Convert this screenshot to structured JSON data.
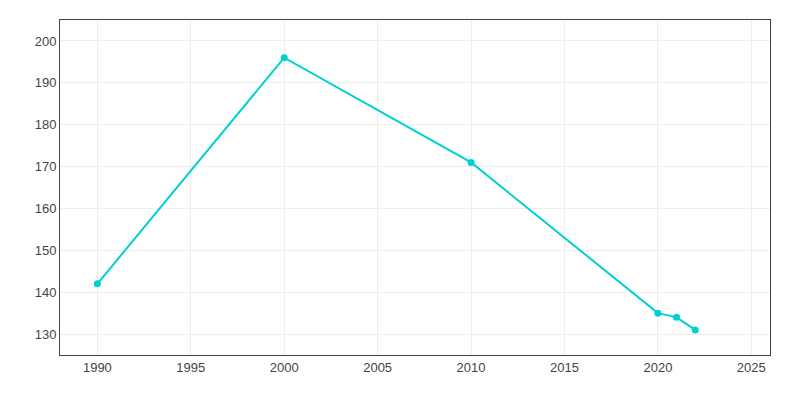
{
  "chart_data": {
    "type": "line",
    "x": [
      1990,
      2000,
      2010,
      2020,
      2021,
      2022
    ],
    "values": [
      142,
      196,
      171,
      135,
      134,
      131
    ],
    "color": "#00d0d0",
    "marker": "circle",
    "xlim": [
      1988,
      2026
    ],
    "ylim": [
      125,
      205
    ],
    "xticks": [
      1990,
      1995,
      2000,
      2005,
      2010,
      2015,
      2020,
      2025
    ],
    "yticks": [
      130,
      140,
      150,
      160,
      170,
      180,
      190,
      200
    ],
    "grid": true
  }
}
